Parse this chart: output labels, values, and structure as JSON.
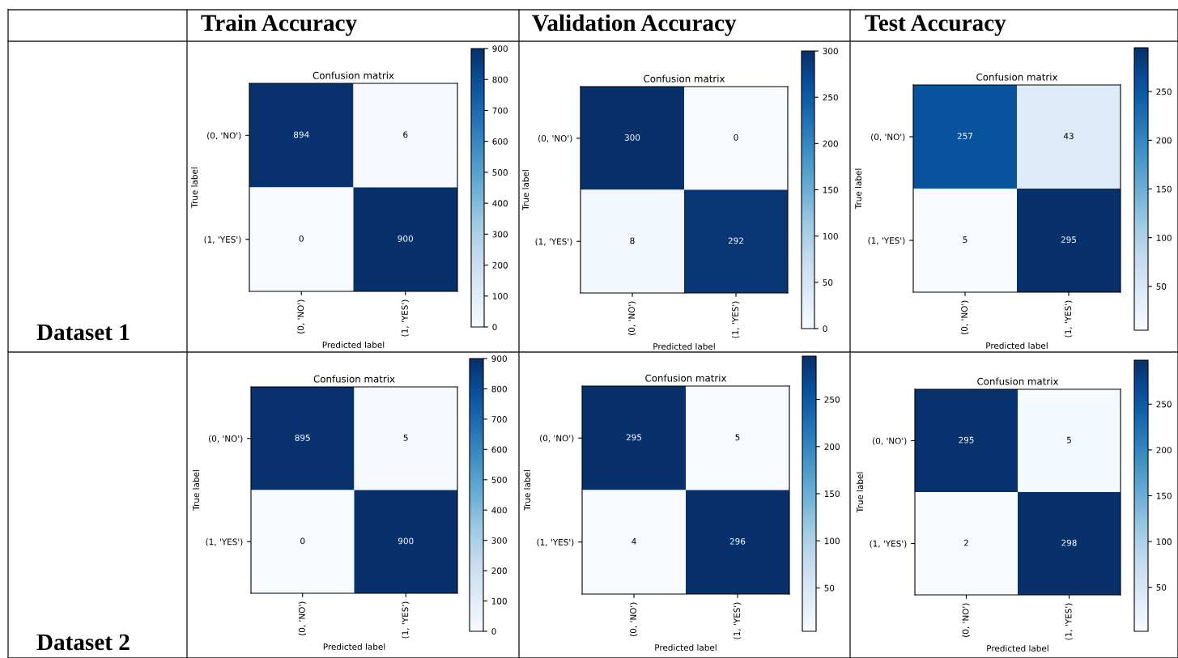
{
  "chart_data": [
    {
      "type": "other",
      "annotations": [
        "Train Accuracy",
        "Validation Accuracy",
        "Test Accuracy",
        "Dataset 1",
        "Dataset 2"
      ]
    },
    {
      "type": "heatmap",
      "title": "Confusion matrix",
      "xlabel": "Predicted label",
      "ylabel": "True label",
      "categories": [
        "(0, 'NO')",
        "(1, 'YES')"
      ],
      "y_categories": [
        "(0, 'NO')",
        "(1, 'YES')"
      ],
      "cells": [
        [
          894,
          6
        ],
        [
          0,
          900
        ]
      ],
      "data_labels": true,
      "clim": [
        0,
        900
      ],
      "cticks": [
        0,
        100,
        200,
        300,
        400,
        500,
        600,
        700,
        800,
        900
      ]
    },
    {
      "type": "heatmap",
      "title": "Confusion matrix",
      "xlabel": "Predicted label",
      "ylabel": "True label",
      "categories": [
        "(0, 'NO')",
        "(1, 'YES')"
      ],
      "y_categories": [
        "(0, 'NO')",
        "(1, 'YES')"
      ],
      "cells": [
        [
          300,
          0
        ],
        [
          8,
          292
        ]
      ],
      "data_labels": true,
      "clim": [
        0,
        300
      ],
      "cticks": [
        0,
        50,
        100,
        150,
        200,
        250,
        300
      ]
    },
    {
      "type": "heatmap",
      "title": "Confusion matrix",
      "xlabel": "Predicted label",
      "ylabel": "True label",
      "categories": [
        "(0, 'NO')",
        "(1, 'YES')"
      ],
      "y_categories": [
        "(0, 'NO')",
        "(1, 'YES')"
      ],
      "cells": [
        [
          257,
          43
        ],
        [
          5,
          295
        ]
      ],
      "data_labels": true,
      "clim": [
        5,
        295
      ],
      "cticks": [
        50,
        100,
        150,
        200,
        250
      ]
    },
    {
      "type": "heatmap",
      "title": "Confusion matrix",
      "xlabel": "Predicted label",
      "ylabel": "True label",
      "categories": [
        "(0, 'NO')",
        "(1, 'YES')"
      ],
      "y_categories": [
        "(0, 'NO')",
        "(1, 'YES')"
      ],
      "cells": [
        [
          895,
          5
        ],
        [
          0,
          900
        ]
      ],
      "data_labels": true,
      "clim": [
        0,
        900
      ],
      "cticks": [
        0,
        100,
        200,
        300,
        400,
        500,
        600,
        700,
        800,
        900
      ]
    },
    {
      "type": "heatmap",
      "title": "Confusion matrix",
      "xlabel": "Predicted label",
      "ylabel": "True label",
      "categories": [
        "(0, 'NO')",
        "(1, 'YES')"
      ],
      "y_categories": [
        "(0, 'NO')",
        "(1, 'YES')"
      ],
      "cells": [
        [
          295,
          5
        ],
        [
          4,
          296
        ]
      ],
      "data_labels": true,
      "clim": [
        4,
        296
      ],
      "cticks": [
        50,
        100,
        150,
        200,
        250
      ]
    },
    {
      "type": "heatmap",
      "title": "Confusion matrix",
      "xlabel": "Predicted label",
      "ylabel": "True label",
      "categories": [
        "(0, 'NO')",
        "(1, 'YES')"
      ],
      "y_categories": [
        "(0, 'NO')",
        "(1, 'YES')"
      ],
      "cells": [
        [
          295,
          5
        ],
        [
          2,
          298
        ]
      ],
      "data_labels": true,
      "clim": [
        2,
        298
      ],
      "cticks": [
        50,
        100,
        150,
        200,
        250
      ]
    }
  ]
}
